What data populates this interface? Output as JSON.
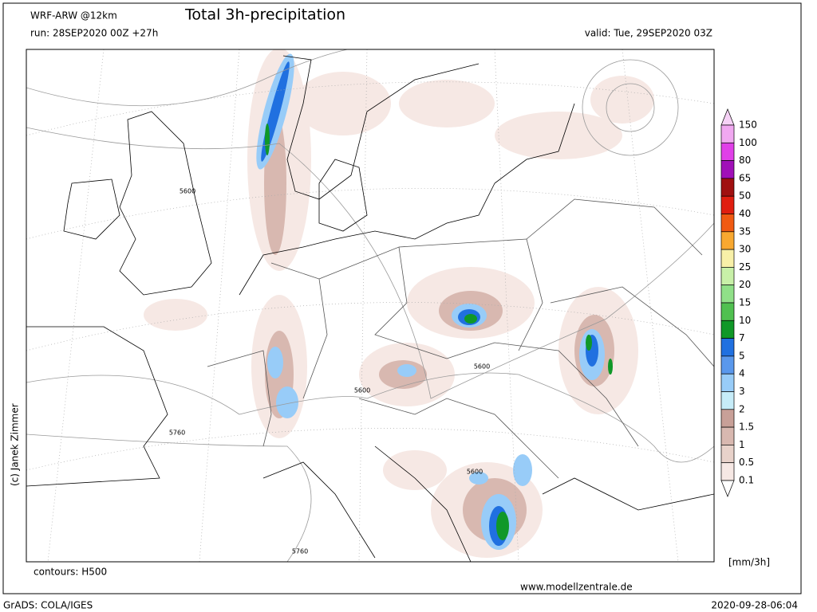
{
  "header": {
    "model": "WRF-ARW @12km",
    "title": "Total 3h-precipitation",
    "run": "run: 28SEP2020 00Z +27h",
    "valid": "valid: Tue, 29SEP2020 03Z"
  },
  "map": {
    "contour_labels": [
      "5600",
      "5600",
      "5600",
      "5600",
      "5760",
      "5760"
    ],
    "copyright": "(c) Janek Zimmer"
  },
  "legend": {
    "levels": [
      150,
      100,
      80,
      65,
      50,
      40,
      35,
      30,
      25,
      20,
      15,
      10,
      7,
      5,
      4,
      3,
      2,
      1.5,
      1,
      0.5,
      0.1
    ],
    "colors": [
      "#f6d2f6",
      "#f0a8f0",
      "#e040e8",
      "#a010b8",
      "#a01010",
      "#e01e10",
      "#f05a12",
      "#f8a830",
      "#f8f0a8",
      "#c8f0a8",
      "#90e088",
      "#50c050",
      "#109828",
      "#2070e0",
      "#5a98ec",
      "#98ccf8",
      "#c6ecf8",
      "#c8a098",
      "#d8b8b0",
      "#e8d2ca",
      "#f6e8e4",
      "#ffffff"
    ],
    "unit": "[mm/3h]"
  },
  "footer": {
    "contours": "contours: H500",
    "website": "www.modellzentrale.de",
    "software": "GrADS: COLA/IGES",
    "timestamp": "2020-09-28-06:04"
  }
}
